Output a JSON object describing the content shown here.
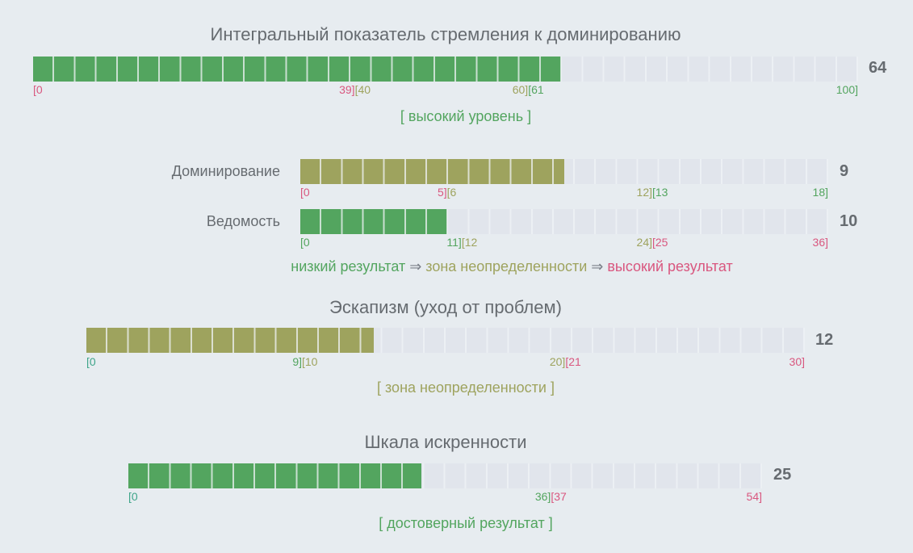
{
  "colors": {
    "green": "#53a55f",
    "olive": "#9ea35e",
    "pink": "#d9577f",
    "teal": "#3fa58a",
    "empty": "#e1e5ec",
    "arrow": "#7a7f88"
  },
  "chart_data": [
    {
      "type": "bar",
      "id": "integral",
      "title": "Интегральный показатель стремления к доминированию",
      "value": 64,
      "max": 100,
      "fill_color": "green",
      "ticks": [
        {
          "left": "[0",
          "lc": "pink"
        },
        {
          "at": 39,
          "left": "39]",
          "lc": "pink",
          "right": "[40",
          "rc": "olive"
        },
        {
          "at": 60,
          "left": "60]",
          "lc": "olive",
          "right": "[61",
          "rc": "green"
        },
        {
          "end": true,
          "left": "100]",
          "lc": "green"
        }
      ],
      "verdict": "[ высокий уровень ]",
      "verdict_color": "green"
    },
    {
      "type": "bar",
      "id": "dominance",
      "label": "Доминирование",
      "value": 9,
      "max": 18,
      "fill_color": "olive",
      "ticks": [
        {
          "left": "[0",
          "lc": "pink"
        },
        {
          "at": 5,
          "left": "5]",
          "lc": "pink",
          "right": "[6",
          "rc": "olive"
        },
        {
          "at": 12,
          "left": "12]",
          "lc": "olive",
          "right": "[13",
          "rc": "green"
        },
        {
          "end": true,
          "left": "18]",
          "lc": "green"
        }
      ]
    },
    {
      "type": "bar",
      "id": "submission",
      "label": "Ведомость",
      "value": 10,
      "max": 36,
      "fill_color": "green",
      "ticks": [
        {
          "left": "[0",
          "lc": "green"
        },
        {
          "at": 11,
          "left": "11]",
          "lc": "green",
          "right": "[12",
          "rc": "olive"
        },
        {
          "at": 24,
          "left": "24]",
          "lc": "olive",
          "right": "[25",
          "rc": "pink"
        },
        {
          "end": true,
          "left": "36]",
          "lc": "pink"
        }
      ]
    },
    {
      "type": "bar",
      "id": "escapism",
      "title": "Эскапизм (уход от проблем)",
      "value": 12,
      "max": 30,
      "fill_color": "olive",
      "ticks": [
        {
          "left": "[0",
          "lc": "teal"
        },
        {
          "at": 9,
          "left": "9]",
          "lc": "green",
          "right": "[10",
          "rc": "olive"
        },
        {
          "at": 20,
          "left": "20]",
          "lc": "olive",
          "right": "[21",
          "rc": "pink"
        },
        {
          "end": true,
          "left": "30]",
          "lc": "pink"
        }
      ],
      "verdict": "[ зона неопределенности ]",
      "verdict_color": "olive"
    },
    {
      "type": "bar",
      "id": "sincerity",
      "title": "Шкала искренности",
      "value": 25,
      "max": 54,
      "fill_color": "green",
      "ticks": [
        {
          "left": "[0",
          "lc": "teal"
        },
        {
          "at": 36,
          "left": "36]",
          "lc": "green",
          "right": "[37",
          "rc": "pink"
        },
        {
          "end": true,
          "left": "54]",
          "lc": "pink"
        }
      ],
      "verdict": "[ достоверный результат ]",
      "verdict_color": "green"
    }
  ],
  "legend": {
    "low": "низкий результат",
    "arrow": " ⇒ ",
    "mid": "зона неопределенности",
    "high": "высокий результат"
  }
}
